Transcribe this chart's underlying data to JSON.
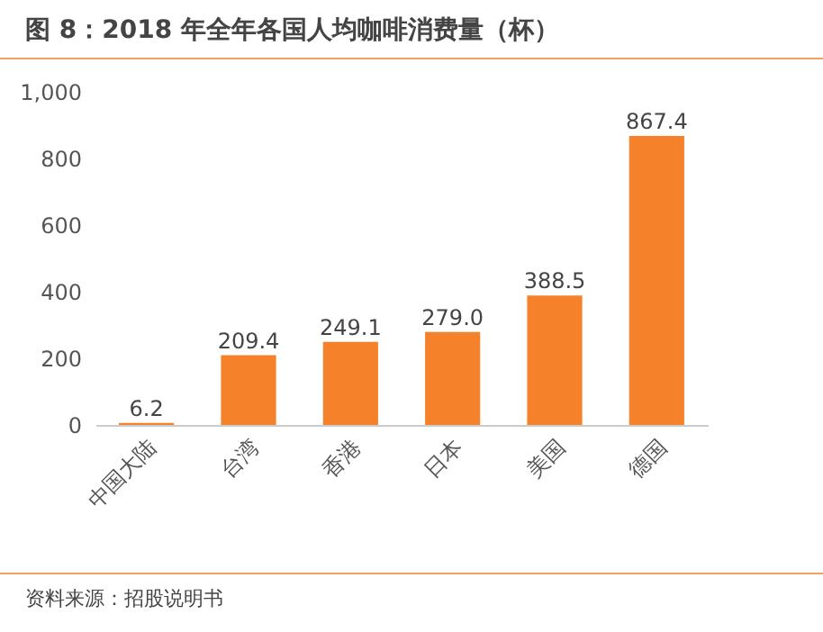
{
  "chart_data": {
    "type": "bar",
    "title": "图 8：2018 年全年各国人均咖啡消费量（杯）",
    "categories": [
      "中国大陆",
      "台湾",
      "香港",
      "日本",
      "美国",
      "德国"
    ],
    "values": [
      6.2,
      209.4,
      249.1,
      279.0,
      388.5,
      867.4
    ],
    "value_labels": [
      "6.2",
      "209.4",
      "249.1",
      "279.0",
      "388.5",
      "867.4"
    ],
    "color": "#f5822a",
    "ylim": [
      0,
      1000
    ],
    "yticks": [
      0,
      200,
      400,
      600,
      800,
      {
        "value": 1000,
        "label": "1,000"
      }
    ],
    "grid": false,
    "annotations": [
      "资料来源：招股说明书"
    ]
  }
}
